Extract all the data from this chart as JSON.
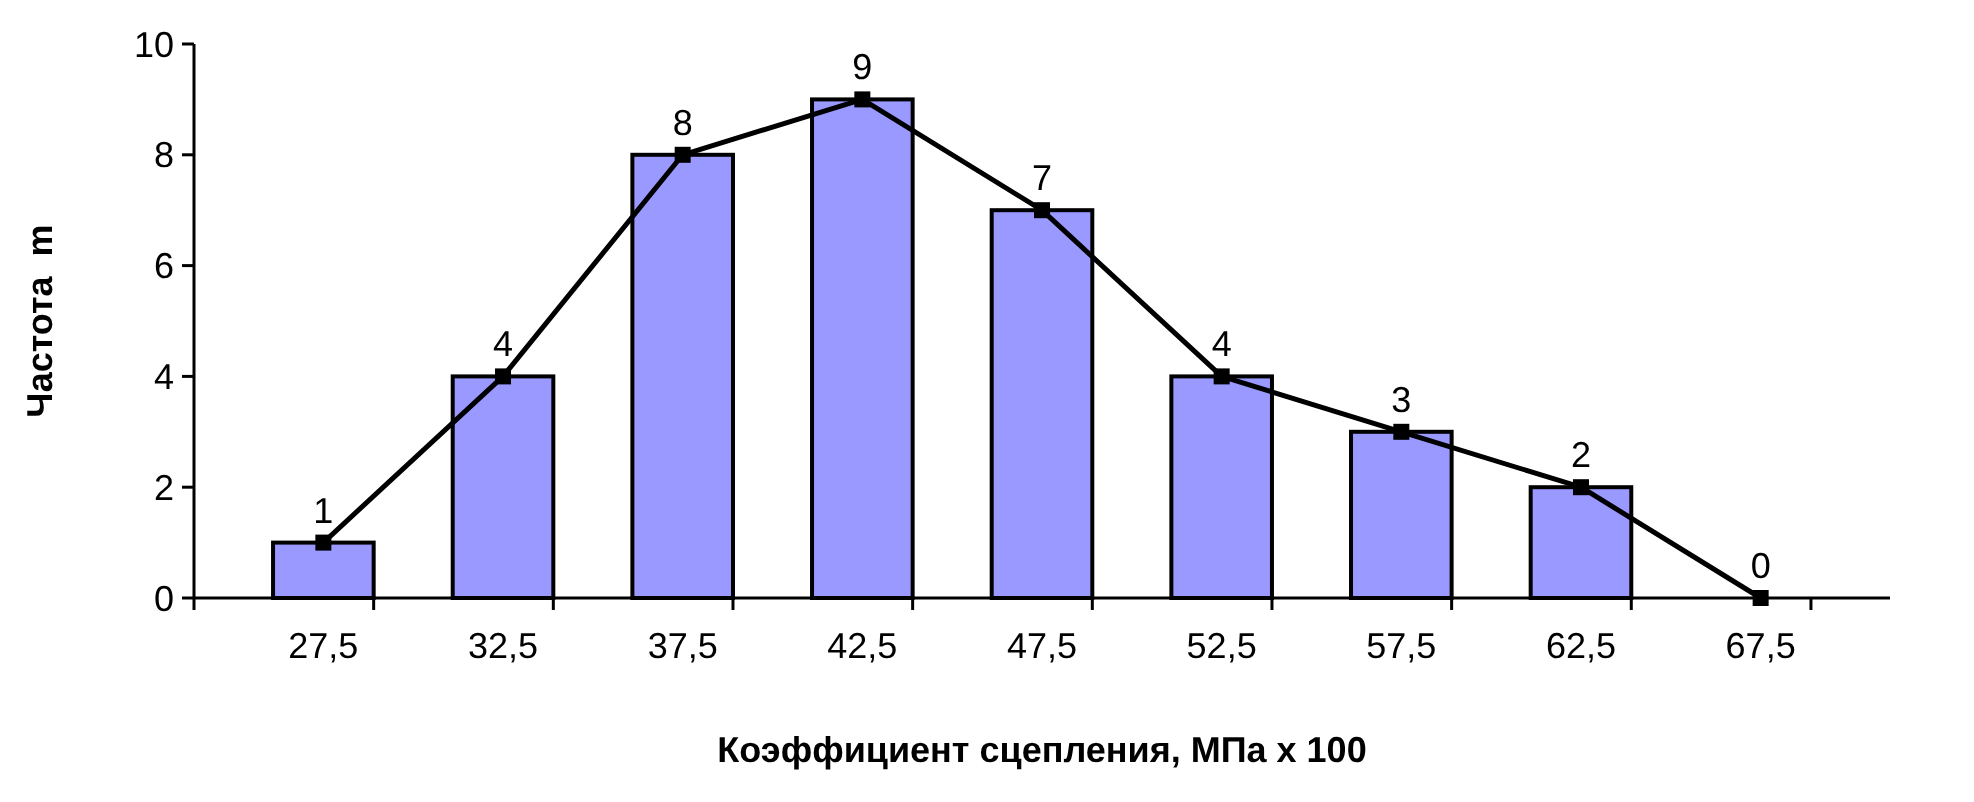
{
  "chart_data": {
    "type": "bar",
    "xlabel": "Коэффициент сцепления, МПа х 100",
    "ylabel": "Частота  m",
    "categories": [
      "27,5",
      "32,5",
      "37,5",
      "42,5",
      "47,5",
      "52,5",
      "57,5",
      "62,5",
      "67,5"
    ],
    "series": [
      {
        "color": "#9999ff",
        "values": [
          1,
          4,
          8,
          9,
          7,
          4,
          3,
          2,
          0
        ],
        "value_labels": [
          "1",
          "4",
          "8",
          "9",
          "7",
          "4",
          "3",
          "2",
          "0"
        ]
      },
      {
        "type": "line",
        "color": "#000000",
        "marker": "square",
        "values": [
          1,
          4,
          8,
          9,
          7,
          4,
          3,
          2,
          0
        ]
      }
    ],
    "ylim": [
      0,
      10
    ],
    "yticks": [
      0,
      2,
      4,
      6,
      8,
      10
    ],
    "grid": false
  }
}
